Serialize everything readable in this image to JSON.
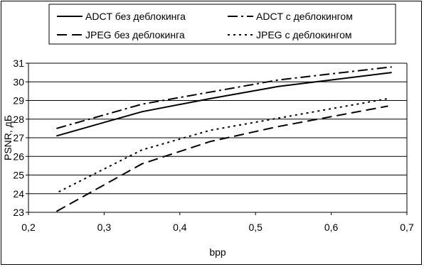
{
  "chart_data": {
    "type": "line",
    "title": "",
    "xlabel": "bpp",
    "ylabel": "PSNR, дБ",
    "xlim": [
      0.2,
      0.7
    ],
    "ylim": [
      23,
      31
    ],
    "x_ticks": [
      "0,2",
      "0,3",
      "0,4",
      "0,5",
      "0,6",
      "0,7"
    ],
    "y_ticks": [
      "23",
      "24",
      "25",
      "26",
      "27",
      "28",
      "29",
      "30",
      "31"
    ],
    "grid": "horizontal",
    "legend_position": "top",
    "series": [
      {
        "name": "ADCT без деблокинга",
        "style": "solid",
        "x": [
          0.237,
          0.35,
          0.44,
          0.53,
          0.68
        ],
        "y": [
          27.1,
          28.4,
          29.1,
          29.75,
          30.5
        ]
      },
      {
        "name": "ADCT с деблокингом",
        "style": "dash-dot",
        "x": [
          0.237,
          0.35,
          0.44,
          0.53,
          0.68
        ],
        "y": [
          27.5,
          28.8,
          29.45,
          30.1,
          30.8
        ]
      },
      {
        "name": "JPEG без деблокинга",
        "style": "dash",
        "x": [
          0.237,
          0.35,
          0.44,
          0.53,
          0.675
        ],
        "y": [
          23.05,
          25.6,
          26.8,
          27.6,
          28.7
        ]
      },
      {
        "name": "JPEG с деблокингом",
        "style": "dot",
        "x": [
          0.24,
          0.35,
          0.44,
          0.53,
          0.675
        ],
        "y": [
          24.1,
          26.35,
          27.4,
          28.05,
          29.1
        ]
      }
    ]
  }
}
